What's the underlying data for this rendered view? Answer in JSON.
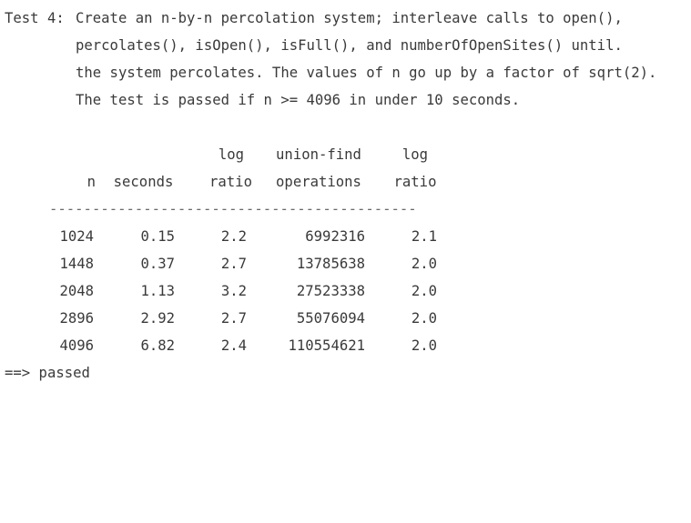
{
  "test": {
    "label": "Test 4:",
    "description": [
      "Create an n-by-n percolation system; interleave calls to open(),",
      "percolates(), isOpen(), isFull(), and numberOfOpenSites() until.",
      "the system percolates. The values of n go up by a factor of sqrt(2).",
      "The test is passed if n >= 4096 in under 10 seconds."
    ]
  },
  "table": {
    "header_top": [
      "",
      "",
      "log",
      "union-find",
      "log"
    ],
    "header_bottom": [
      "n",
      "seconds",
      "ratio",
      "operations",
      "ratio"
    ],
    "separator": "-------------------------------------------",
    "rows": [
      [
        "1024",
        "0.15",
        "2.2",
        "6992316",
        "2.1"
      ],
      [
        "1448",
        "0.37",
        "2.7",
        "13785638",
        "2.0"
      ],
      [
        "2048",
        "1.13",
        "3.2",
        "27523338",
        "2.0"
      ],
      [
        "2896",
        "2.92",
        "2.7",
        "55076094",
        "2.0"
      ],
      [
        "4096",
        "6.82",
        "2.4",
        "110554621",
        "2.0"
      ]
    ]
  },
  "result": "==> passed"
}
